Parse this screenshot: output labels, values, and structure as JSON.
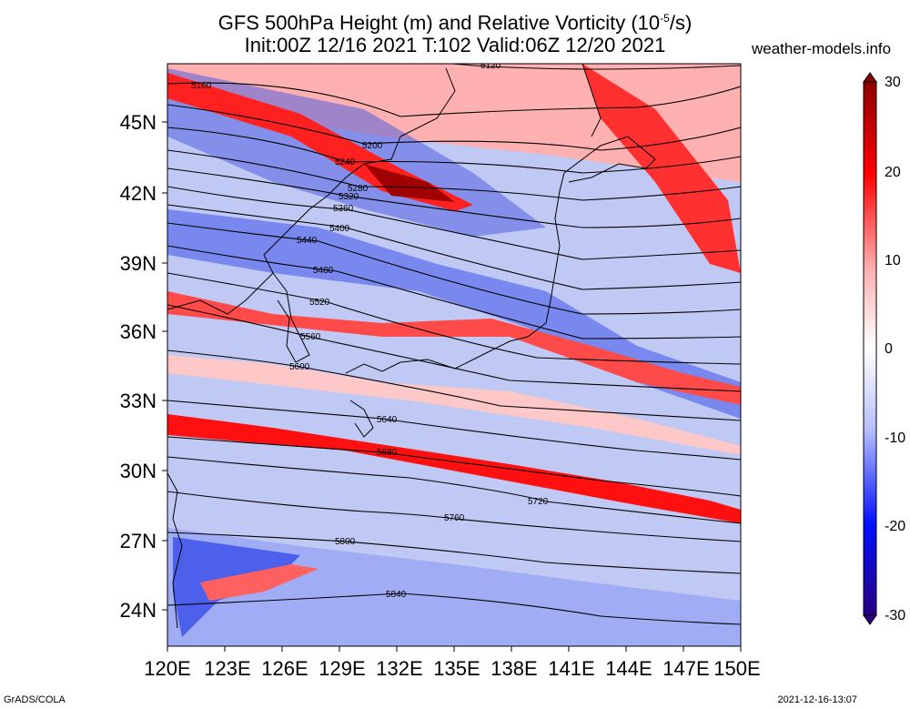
{
  "header": {
    "title_line1": "GFS 500hPa Height (m) and Relative Vorticity (10",
    "title_exp": "-5",
    "title_unit_end": "/s)",
    "title_line2": "Init:00Z 12/16 2021 T:102 Valid:06Z 12/20 2021",
    "site": "weather-models.info"
  },
  "axes": {
    "lat_labels": [
      "45N",
      "42N",
      "39N",
      "36N",
      "33N",
      "30N",
      "27N",
      "24N"
    ],
    "lon_labels": [
      "120E",
      "123E",
      "126E",
      "129E",
      "132E",
      "135E",
      "138E",
      "141E",
      "144E",
      "147E",
      "150E"
    ]
  },
  "colorbar": {
    "labels": [
      "30",
      "20",
      "10",
      "0",
      "-10",
      "-20",
      "-30"
    ],
    "min": -30,
    "max": 30,
    "colors": {
      "strong_pos": "#8b0000",
      "pos": "#ff0000",
      "weak_pos": "#ffc0c0",
      "zero": "#ffffff",
      "weak_neg": "#c0c8ff",
      "neg": "#0000ff",
      "strong_neg": "#2a0080"
    }
  },
  "contours": {
    "labels": [
      "5120",
      "5160",
      "5200",
      "5240",
      "5280",
      "5320",
      "5360",
      "5400",
      "5440",
      "5480",
      "5520",
      "5560",
      "5600",
      "5640",
      "5680",
      "5720",
      "5760",
      "5800",
      "5840"
    ]
  },
  "footer": {
    "left": "GrADS/COLA",
    "right": "2021-12-16-13:07"
  }
}
